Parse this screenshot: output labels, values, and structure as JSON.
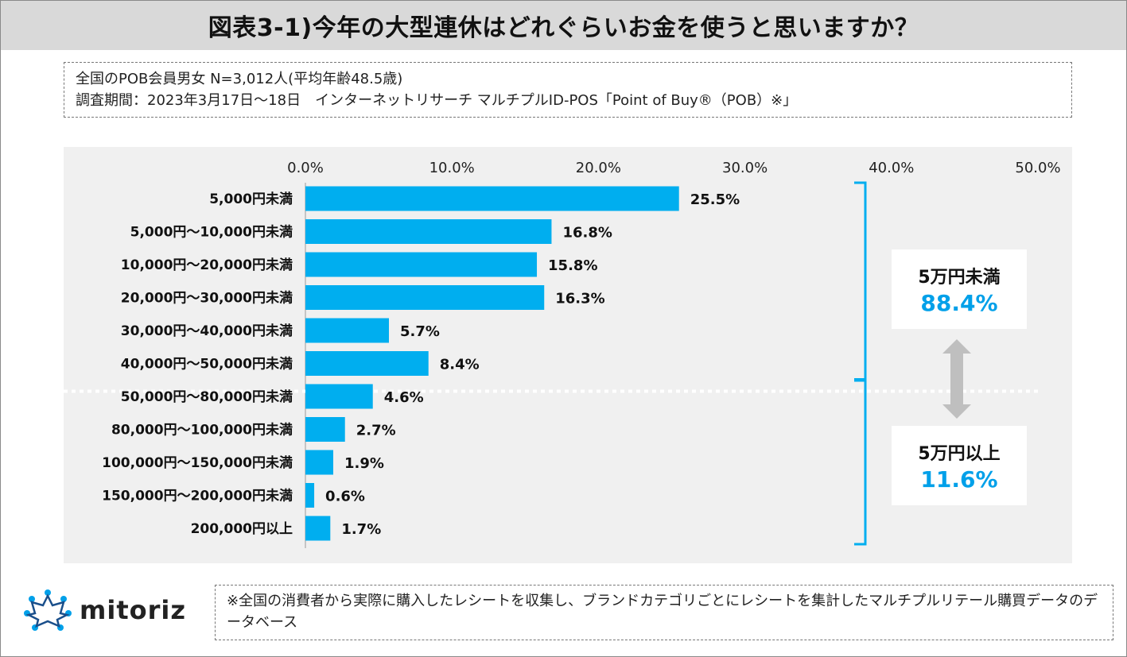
{
  "title": "図表3-1)今年の大型連休はどれぐらいお金を使うと思いますか？",
  "info": {
    "line1": "全国のPOB会員男女 N=3,012人(平均年齢48.5歳)",
    "line2": "調査期間：2023年3月17日〜18日　インターネットリサーチ マルチプルID-POS「Point of Buy®（POB）※」"
  },
  "chart_data": {
    "type": "bar",
    "orientation": "horizontal",
    "title": "",
    "xlabel": "",
    "ylabel": "",
    "xlim": [
      0,
      50
    ],
    "ticks": [
      "0.0%",
      "10.0%",
      "20.0%",
      "30.0%",
      "40.0%",
      "50.0%"
    ],
    "tick_values": [
      0,
      10,
      20,
      30,
      40,
      50
    ],
    "categories": [
      "5,000円未満",
      "5,000円〜10,000円未満",
      "10,000円〜20,000円未満",
      "20,000円〜30,000円未満",
      "30,000円〜40,000円未満",
      "40,000円〜50,000円未満",
      "50,000円〜80,000円未満",
      "80,000円〜100,000円未満",
      "100,000円〜150,000円未満",
      "150,000円〜200,000円未満",
      "200,000円以上"
    ],
    "values": [
      25.5,
      16.8,
      15.8,
      16.3,
      5.7,
      8.4,
      4.6,
      2.7,
      1.9,
      0.6,
      1.7
    ],
    "value_labels": [
      "25.5%",
      "16.8%",
      "15.8%",
      "16.3%",
      "5.7%",
      "8.4%",
      "4.6%",
      "2.7%",
      "1.9%",
      "0.6%",
      "1.7%"
    ],
    "bar_color": "#00aeef",
    "groups": [
      {
        "label": "5万円未満",
        "value": "88.4%",
        "from": 0,
        "to": 5
      },
      {
        "label": "5万円以上",
        "value": "11.6%",
        "from": 6,
        "to": 10
      }
    ]
  },
  "colors": {
    "accent": "#00a0e9",
    "bracket": "#00aeef",
    "arrow": "#bfbfbf"
  },
  "footer": {
    "logo_text": "mitoriz",
    "note": "※全国の消費者から実際に購入したレシートを収集し、ブランドカテゴリごとにレシートを集計したマルチプルリテール購買データのデータベース"
  }
}
